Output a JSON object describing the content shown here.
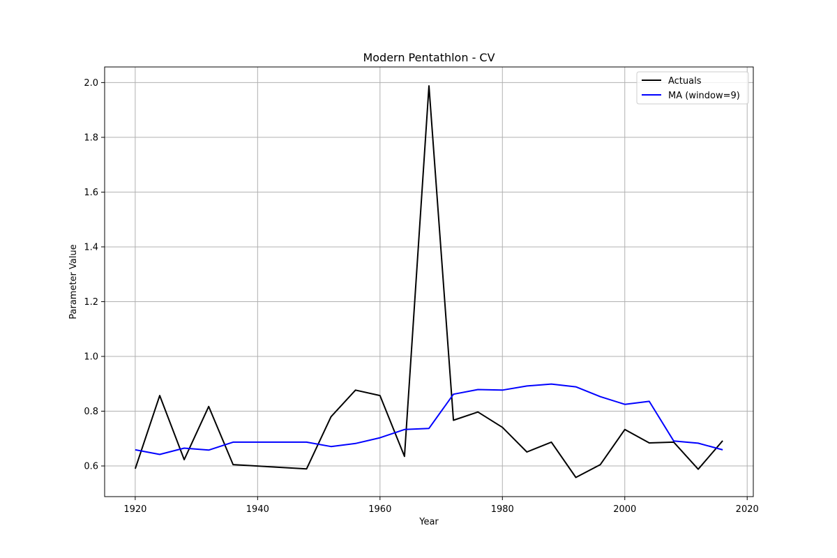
{
  "chart_data": {
    "type": "line",
    "title": "Modern Pentathlon - CV",
    "xlabel": "Year",
    "ylabel": "Parameter Value",
    "xlim": [
      1915,
      2021
    ],
    "ylim": [
      0.488,
      2.057
    ],
    "xticks": [
      1920,
      1940,
      1960,
      1980,
      2000,
      2020
    ],
    "yticks": [
      0.6,
      0.8,
      1.0,
      1.2,
      1.4,
      1.6,
      1.8,
      2.0
    ],
    "xtick_labels": [
      "1920",
      "1940",
      "1960",
      "1980",
      "2000",
      "2020"
    ],
    "ytick_labels": [
      "0.6",
      "0.8",
      "1.0",
      "1.2",
      "1.4",
      "1.6",
      "1.8",
      "2.0"
    ],
    "grid": true,
    "legend_position": "upper right",
    "series": [
      {
        "name": "Actuals",
        "color": "#000000",
        "x": [
          1920,
          1924,
          1928,
          1932,
          1936,
          1948,
          1952,
          1956,
          1960,
          1964,
          1968,
          1972,
          1976,
          1980,
          1984,
          1988,
          1992,
          1996,
          2000,
          2004,
          2008,
          2012,
          2016
        ],
        "values": [
          0.59,
          0.857,
          0.623,
          0.817,
          0.605,
          0.589,
          0.78,
          0.877,
          0.857,
          0.635,
          1.988,
          0.767,
          0.797,
          0.741,
          0.651,
          0.687,
          0.558,
          0.605,
          0.733,
          0.684,
          0.687,
          0.588,
          0.692
        ]
      },
      {
        "name": "MA (window=9)",
        "color": "#0000ff",
        "x": [
          1920,
          1924,
          1928,
          1932,
          1936,
          1948,
          1952,
          1956,
          1960,
          1964,
          1968,
          1972,
          1976,
          1980,
          1984,
          1988,
          1992,
          1996,
          2000,
          2004,
          2008,
          2012,
          2016
        ],
        "values": [
          0.659,
          0.642,
          0.665,
          0.658,
          0.687,
          0.687,
          0.671,
          0.682,
          0.703,
          0.733,
          0.737,
          0.862,
          0.879,
          0.877,
          0.892,
          0.899,
          0.889,
          0.853,
          0.825,
          0.836,
          0.691,
          0.683,
          0.659
        ]
      }
    ]
  }
}
